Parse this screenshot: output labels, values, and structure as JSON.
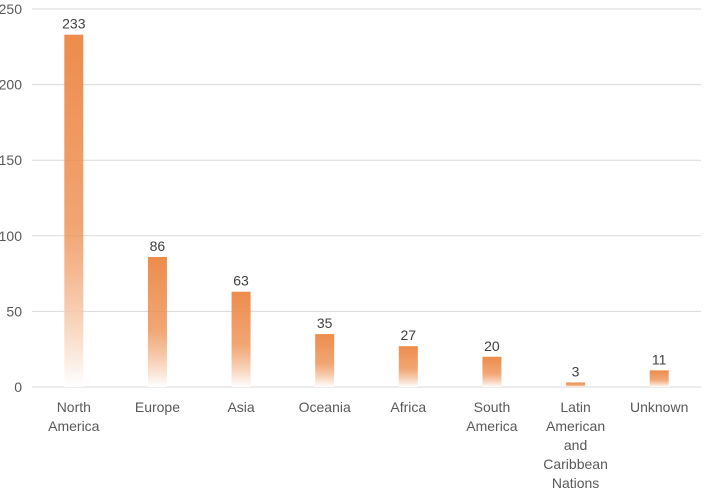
{
  "chart_data": {
    "type": "bar",
    "categories": [
      [
        "North",
        "America"
      ],
      [
        "Europe"
      ],
      [
        "Asia"
      ],
      [
        "Oceania"
      ],
      [
        "Africa"
      ],
      [
        "South",
        "America"
      ],
      [
        "Latin",
        "American",
        "and",
        "Caribbean",
        "Nations"
      ],
      [
        "Unknown"
      ]
    ],
    "values": [
      233,
      86,
      63,
      35,
      27,
      20,
      3,
      11
    ],
    "ylim": [
      0,
      250
    ],
    "yticks": [
      0,
      50,
      100,
      150,
      200,
      250
    ],
    "grid": true,
    "legend": "none",
    "bar_color": "#ed8c4c",
    "bar_fade_color": "#ffffff"
  }
}
